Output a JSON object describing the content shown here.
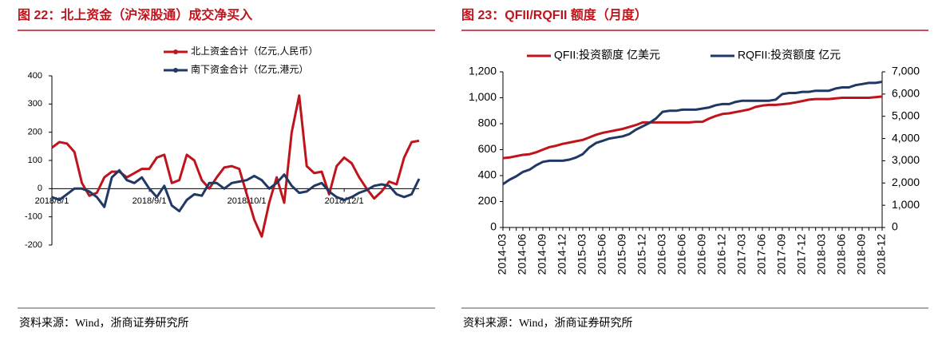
{
  "chart_data": [
    {
      "type": "line",
      "title": "图 22：北上资金（沪深股通）成交净买入",
      "source": "资料来源：Wind，浙商证券研究所",
      "categories": [
        "2018/8/1",
        null,
        null,
        null,
        null,
        null,
        null,
        null,
        null,
        null,
        null,
        null,
        null,
        "2018/9/1",
        null,
        null,
        null,
        null,
        null,
        null,
        null,
        null,
        null,
        null,
        null,
        null,
        "2018/10/1",
        null,
        null,
        null,
        null,
        null,
        null,
        null,
        null,
        null,
        null,
        null,
        null,
        "2018/12/1",
        null,
        null,
        null,
        null,
        null,
        null,
        null,
        null,
        null,
        null
      ],
      "series": [
        {
          "name": "北上资金合计（亿元,人民币）",
          "color": "#c0141d",
          "values": [
            145,
            165,
            160,
            130,
            20,
            -25,
            -15,
            40,
            60,
            60,
            40,
            55,
            70,
            70,
            110,
            120,
            20,
            30,
            120,
            100,
            30,
            0,
            40,
            75,
            80,
            70,
            -20,
            -110,
            -170,
            -50,
            40,
            -50,
            200,
            330,
            80,
            55,
            60,
            -20,
            80,
            110,
            90,
            40,
            0,
            -35,
            -10,
            25,
            15,
            110,
            165,
            170
          ]
        },
        {
          "name": "南下资金合计（亿元,港元）",
          "color": "#1f3864",
          "values": [
            -30,
            -40,
            -20,
            0,
            0,
            -10,
            -30,
            -65,
            40,
            65,
            30,
            20,
            40,
            0,
            -30,
            10,
            -60,
            -80,
            -40,
            -20,
            -25,
            20,
            20,
            0,
            20,
            25,
            30,
            45,
            30,
            0,
            20,
            50,
            10,
            -15,
            -10,
            10,
            20,
            -10,
            -30,
            -40,
            -30,
            -15,
            -5,
            10,
            15,
            10,
            -20,
            -30,
            -20,
            35
          ]
        }
      ],
      "ylim": [
        -200,
        400
      ],
      "yticks": [
        -200,
        -100,
        0,
        100,
        200,
        300,
        400
      ]
    },
    {
      "type": "line",
      "title": "图 23：QFII/RQFII 额度（月度）",
      "source": "资料来源：Wind，浙商证券研究所",
      "categories": [
        "2014-03",
        null,
        null,
        "2014-06",
        null,
        null,
        "2014-09",
        null,
        null,
        "2014-12",
        null,
        null,
        "2015-03",
        null,
        null,
        "2015-06",
        null,
        null,
        "2015-09",
        null,
        null,
        "2015-12",
        null,
        null,
        "2016-03",
        null,
        null,
        "2016-06",
        null,
        null,
        "2016-09",
        null,
        null,
        "2016-12",
        null,
        null,
        "2017-03",
        null,
        null,
        "2017-06",
        null,
        null,
        "2017-09",
        null,
        null,
        "2017-12",
        null,
        null,
        "2018-03",
        null,
        null,
        "2018-06",
        null,
        null,
        "2018-09",
        null,
        null,
        "2018-12"
      ],
      "series": [
        {
          "name": "QFII:投资额度 亿美元",
          "color": "#c0141d",
          "values": [
            535,
            540,
            550,
            560,
            565,
            580,
            600,
            620,
            630,
            645,
            655,
            665,
            675,
            695,
            715,
            730,
            740,
            750,
            760,
            775,
            790,
            810,
            810,
            810,
            810,
            810,
            810,
            810,
            810,
            815,
            815,
            840,
            860,
            875,
            880,
            890,
            900,
            910,
            930,
            940,
            945,
            945,
            950,
            955,
            965,
            975,
            985,
            990,
            990,
            990,
            995,
            1000,
            1000,
            1000,
            1000,
            1000,
            1005,
            1010
          ]
        },
        {
          "name": "RQFII:投资额度 亿元",
          "color": "#1f3864",
          "axis": "y2",
          "values": [
            1950,
            2150,
            2300,
            2500,
            2600,
            2800,
            2950,
            3000,
            3000,
            3000,
            3050,
            3150,
            3300,
            3600,
            3800,
            3900,
            4000,
            4050,
            4100,
            4200,
            4400,
            4550,
            4700,
            4900,
            5200,
            5250,
            5250,
            5300,
            5300,
            5300,
            5350,
            5400,
            5500,
            5550,
            5550,
            5650,
            5700,
            5700,
            5700,
            5700,
            5700,
            5750,
            6000,
            6050,
            6050,
            6100,
            6100,
            6150,
            6150,
            6150,
            6250,
            6300,
            6300,
            6400,
            6450,
            6500,
            6500,
            6550
          ]
        }
      ],
      "ylim": [
        0,
        1200
      ],
      "yticks": [
        0,
        200,
        400,
        600,
        800,
        {
          "value": 1000,
          "label": "1,000"
        },
        {
          "value": 1200,
          "label": "1,200"
        }
      ],
      "y2lim": [
        0,
        7000
      ],
      "y2ticks": [
        0,
        {
          "value": 1000,
          "label": "1,000"
        },
        {
          "value": 2000,
          "label": "2,000"
        },
        {
          "value": 3000,
          "label": "3,000"
        },
        {
          "value": 4000,
          "label": "4,000"
        },
        {
          "value": 5000,
          "label": "5,000"
        },
        {
          "value": 6000,
          "label": "6,000"
        },
        {
          "value": 7000,
          "label": "7,000"
        }
      ]
    }
  ]
}
